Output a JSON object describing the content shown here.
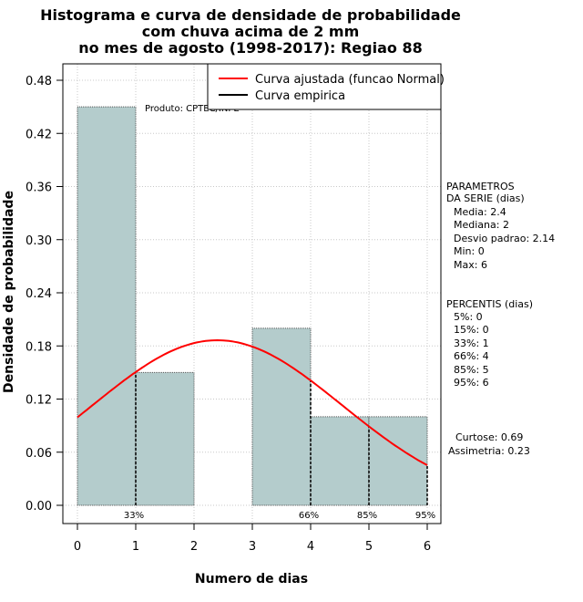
{
  "chart_data": {
    "type": "histogram",
    "title_lines": [
      "Histograma e curva de densidade de probabilidade",
      "com chuva acima de 2 mm",
      "no mes de agosto (1998-2017): Regiao 88"
    ],
    "xlabel": "Numero de dias",
    "ylabel": "Densidade de probabilidade",
    "xlim": [
      0,
      6
    ],
    "ylim": [
      0,
      0.48
    ],
    "x_ticks": [
      0,
      1,
      2,
      3,
      4,
      5,
      6
    ],
    "y_ticks": [
      0.0,
      0.06,
      0.12,
      0.18,
      0.24,
      0.3,
      0.36,
      0.42,
      0.48
    ],
    "y_tick_labels": [
      "0.00",
      "0.06",
      "0.12",
      "0.18",
      "0.24",
      "0.30",
      "0.36",
      "0.42",
      "0.48"
    ],
    "bins": [
      {
        "from": 0,
        "to": 1,
        "density": 0.45
      },
      {
        "from": 1,
        "to": 2,
        "density": 0.15
      },
      {
        "from": 2,
        "to": 3,
        "density": 0.0
      },
      {
        "from": 3,
        "to": 4,
        "density": 0.2
      },
      {
        "from": 4,
        "to": 5,
        "density": 0.1
      },
      {
        "from": 5,
        "to": 6,
        "density": 0.1
      }
    ],
    "normal_curve": {
      "name": "Curva ajustada (funcao Normal)",
      "mean": 2.4,
      "sd": 2.14,
      "color": "#ff0000"
    },
    "empirical_curve": {
      "name": "Curva empirica",
      "color": "#000000"
    },
    "percentile_markers": [
      {
        "x": 1,
        "label": "33%"
      },
      {
        "x": 4,
        "label": "66%"
      },
      {
        "x": 5,
        "label": "85%"
      },
      {
        "x": 6,
        "label": "95%"
      }
    ],
    "bar_color": "#b4cccc",
    "grid": true,
    "legend_position": "top-right",
    "product_note": "Produto: CPTEC/INPE"
  },
  "side_panel": {
    "params_header": [
      "PARAMETROS",
      "DA SERIE (dias)"
    ],
    "params": [
      "Media: 2.4",
      "Mediana: 2",
      "Desvio padrao: 2.14",
      "Min: 0",
      "Max: 6"
    ],
    "percentiles_header": "PERCENTIS (dias)",
    "percentiles": [
      "5%: 0",
      "15%: 0",
      "33%: 1",
      "66%: 4",
      "85%: 5",
      "95%: 6"
    ],
    "curtose": "Curtose: 0.69",
    "assimetria": "Assimetria: 0.23"
  }
}
